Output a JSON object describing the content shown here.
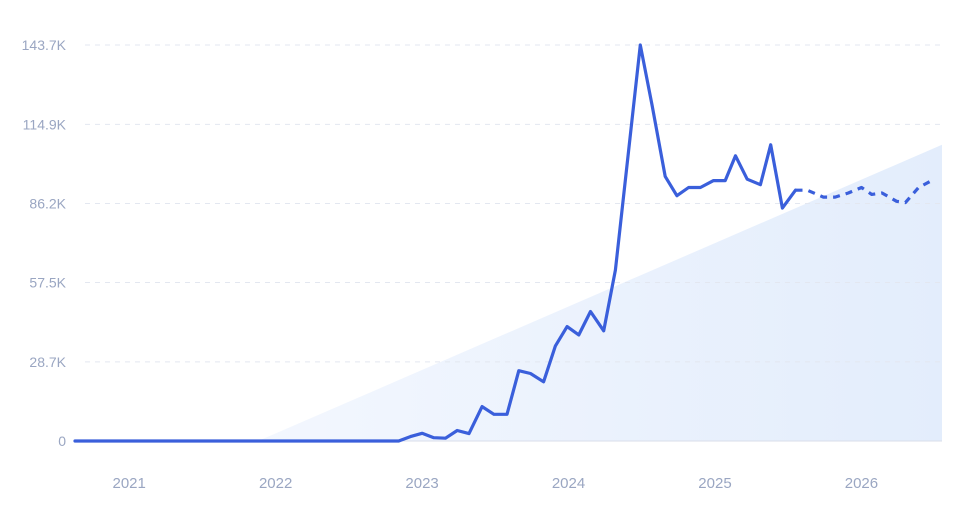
{
  "chart_data": {
    "type": "line",
    "title": "",
    "xlabel": "",
    "ylabel": "",
    "y_ticks": [
      {
        "value": 0,
        "label": "0"
      },
      {
        "value": 28700,
        "label": "28.7K"
      },
      {
        "value": 57500,
        "label": "57.5K"
      },
      {
        "value": 86200,
        "label": "86.2K"
      },
      {
        "value": 114900,
        "label": "114.9K"
      },
      {
        "value": 143700,
        "label": "143.7K"
      }
    ],
    "x_ticks": [
      "2021",
      "2022",
      "2023",
      "2024",
      "2025",
      "2026"
    ],
    "xlim": [
      2020.63,
      2026.55
    ],
    "ylim": [
      0,
      143700
    ],
    "grid": true,
    "legend": "none",
    "colors": {
      "line": "#3a5fdb",
      "trend_fill": "#e6effc",
      "grid": "#e3e7f0",
      "tick_text": "#9aa6c2"
    },
    "series": [
      {
        "style": "solid",
        "points": [
          [
            2020.63,
            0
          ],
          [
            2021.0,
            0
          ],
          [
            2021.5,
            0
          ],
          [
            2022.0,
            0
          ],
          [
            2022.5,
            0
          ],
          [
            2022.84,
            0
          ],
          [
            2022.92,
            1600
          ],
          [
            2023.0,
            2800
          ],
          [
            2023.08,
            1200
          ],
          [
            2023.16,
            1000
          ],
          [
            2023.24,
            3800
          ],
          [
            2023.32,
            2700
          ],
          [
            2023.41,
            12500
          ],
          [
            2023.49,
            9700
          ],
          [
            2023.58,
            9700
          ],
          [
            2023.66,
            25500
          ],
          [
            2023.74,
            24500
          ],
          [
            2023.83,
            21500
          ],
          [
            2023.91,
            34500
          ],
          [
            2023.99,
            41500
          ],
          [
            2024.07,
            38500
          ],
          [
            2024.15,
            47000
          ],
          [
            2024.24,
            40000
          ],
          [
            2024.32,
            62000
          ],
          [
            2024.49,
            143700
          ],
          [
            2024.57,
            122000
          ],
          [
            2024.66,
            96000
          ],
          [
            2024.74,
            89000
          ],
          [
            2024.82,
            92000
          ],
          [
            2024.9,
            92000
          ],
          [
            2024.99,
            94500
          ],
          [
            2025.07,
            94500
          ],
          [
            2025.14,
            103500
          ],
          [
            2025.22,
            95000
          ],
          [
            2025.31,
            93000
          ],
          [
            2025.38,
            107500
          ],
          [
            2025.46,
            84500
          ],
          [
            2025.55,
            91000
          ]
        ]
      },
      {
        "style": "dashed",
        "points": [
          [
            2025.55,
            91000
          ],
          [
            2025.63,
            91000
          ],
          [
            2025.74,
            88500
          ],
          [
            2025.82,
            88500
          ],
          [
            2025.91,
            90000
          ],
          [
            2026.0,
            92000
          ],
          [
            2026.07,
            89500
          ],
          [
            2026.14,
            90000
          ],
          [
            2026.24,
            87000
          ],
          [
            2026.3,
            86500
          ],
          [
            2026.39,
            92000
          ],
          [
            2026.48,
            94500
          ]
        ]
      }
    ],
    "trend": {
      "start": [
        2021.88,
        0
      ],
      "end": [
        2026.55,
        107500
      ]
    }
  }
}
